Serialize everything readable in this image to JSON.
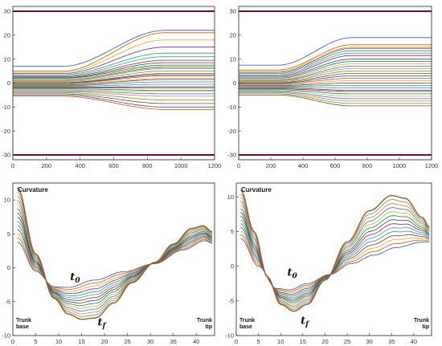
{
  "chart_data": [
    {
      "id": "top-left",
      "type": "line",
      "x_range": [
        0,
        1200
      ],
      "ylim": [
        -32,
        32
      ],
      "xticks": [
        0,
        200,
        400,
        600,
        800,
        1000,
        1200
      ],
      "yticks": [
        -30,
        -20,
        -10,
        0,
        10,
        20,
        30
      ],
      "boundaries": [
        30,
        -30
      ],
      "transition_x": [
        300,
        900
      ],
      "series_starts": [
        7,
        5,
        4.5,
        4,
        3.5,
        3,
        2.6,
        2.2,
        2,
        1.6,
        1.2,
        1,
        0.6,
        0.2,
        0,
        -0.2,
        -0.5,
        -0.8,
        -1.1,
        -1.4,
        -1.7,
        -2,
        -2.4,
        -2.8,
        -3.2,
        -3.6,
        -4,
        -4.5,
        -5,
        -5.5
      ],
      "series_ends": [
        22,
        21,
        18,
        15,
        12.5,
        11,
        9.5,
        8.5,
        7.5,
        7,
        6.5,
        6,
        5,
        4,
        3.5,
        3,
        2,
        1.5,
        0.5,
        -0.5,
        -1.5,
        -2,
        -3,
        -3.5,
        -4.5,
        -5.5,
        -7,
        -8.5,
        -10,
        -11
      ]
    },
    {
      "id": "top-right",
      "type": "line",
      "x_range": [
        0,
        1200
      ],
      "ylim": [
        -32,
        32
      ],
      "xticks": [
        0,
        200,
        400,
        600,
        800,
        1000,
        1200
      ],
      "yticks": [
        -30,
        -20,
        -10,
        0,
        10,
        20,
        30
      ],
      "boundaries": [
        30,
        -30
      ],
      "transition_x": [
        250,
        700
      ],
      "series_starts": [
        7.5,
        5.5,
        5,
        4.5,
        4,
        3.5,
        3,
        2.5,
        2,
        1.5,
        1.2,
        1,
        0.6,
        0.2,
        -0.1,
        -0.4,
        -0.7,
        -1,
        -1.3,
        -1.6,
        -2,
        -2.4,
        -2.8,
        -3.2,
        -3.6,
        -4,
        -4.5,
        -5
      ],
      "series_ends": [
        19,
        16,
        15,
        14.5,
        13.5,
        12.5,
        11.5,
        10,
        9,
        8,
        7,
        6,
        5,
        4,
        3,
        2,
        1,
        0,
        -1,
        -2,
        -3,
        -3.5,
        -4.5,
        -5.5,
        -6.5,
        -7.5,
        -8.5,
        -9.5
      ]
    },
    {
      "id": "bottom-left",
      "type": "line",
      "x_range": [
        0,
        44
      ],
      "ylim": [
        -10,
        12.5
      ],
      "xticks": [
        0,
        5,
        10,
        15,
        20,
        25,
        30,
        35,
        40
      ],
      "yticks": [
        -10,
        -5,
        0,
        5,
        10
      ],
      "title": "Curvature",
      "label_left": "Trunk\nbase",
      "label_right": "Trunk\ntip",
      "t0_label": "t",
      "t0_sub": "0",
      "tf_label": "t",
      "tf_sub": "f",
      "t0_pos": [
        12.5,
        -1.8
      ],
      "tf_pos": [
        18.5,
        -8.5
      ],
      "initial_profile": [
        [
          1,
          3.8
        ],
        [
          5,
          -0.5
        ],
        [
          9,
          -2.8
        ],
        [
          12,
          -2.9
        ],
        [
          18,
          -1.8
        ],
        [
          24,
          -0.6
        ],
        [
          31,
          0.6
        ],
        [
          37,
          2.6
        ],
        [
          42,
          4
        ],
        [
          43.5,
          3.6
        ]
      ],
      "final_profile": [
        [
          1,
          11.8
        ],
        [
          5,
          2
        ],
        [
          9,
          -4.5
        ],
        [
          12,
          -6.8
        ],
        [
          15,
          -7.6
        ],
        [
          18,
          -7.4
        ],
        [
          22,
          -5.2
        ],
        [
          26,
          -2.2
        ],
        [
          31,
          0.8
        ],
        [
          35,
          3.5
        ],
        [
          39,
          5.8
        ],
        [
          41.5,
          6.2
        ],
        [
          43.5,
          5.3
        ]
      ],
      "n_curves": 14
    },
    {
      "id": "bottom-right",
      "type": "line",
      "x_range": [
        0,
        44
      ],
      "ylim": [
        -10,
        12
      ],
      "xticks": [
        0,
        5,
        10,
        15,
        20,
        25,
        30,
        35,
        40
      ],
      "yticks": [
        -10,
        -5,
        0,
        5,
        10
      ],
      "title": "Curvature",
      "label_left": "Trunk\nbase",
      "label_right": "Trunk\ntip",
      "t0_label": "t",
      "t0_sub": "0",
      "tf_label": "t",
      "tf_sub": "f",
      "t0_pos": [
        11.5,
        -1.4
      ],
      "tf_pos": [
        14.5,
        -8.3
      ],
      "initial_profile": [
        [
          1,
          4
        ],
        [
          5,
          0
        ],
        [
          9,
          -3.2
        ],
        [
          12,
          -3.4
        ],
        [
          16,
          -2.5
        ],
        [
          21,
          -1.2
        ],
        [
          26,
          0.4
        ],
        [
          31,
          1.6
        ],
        [
          36,
          2.7
        ],
        [
          42,
          3.5
        ],
        [
          43.5,
          3.5
        ]
      ],
      "final_profile": [
        [
          1,
          11
        ],
        [
          4,
          5
        ],
        [
          7,
          -1.5
        ],
        [
          10,
          -5.5
        ],
        [
          13,
          -6.5
        ],
        [
          16,
          -5.5
        ],
        [
          20,
          -2
        ],
        [
          25,
          3.5
        ],
        [
          30,
          8
        ],
        [
          35,
          10.2
        ],
        [
          38,
          9.8
        ],
        [
          42,
          7
        ],
        [
          43.5,
          5.6
        ]
      ],
      "n_curves": 14
    }
  ],
  "colors": {
    "boundary_upper": "#7a1010",
    "boundary_lower": "#7a1010",
    "palette": [
      "#1f4fd0",
      "#d35400",
      "#e0b000",
      "#7b1fa2",
      "#2e9e2e",
      "#18a0e0",
      "#b0182e",
      "#444444",
      "#0a7d7d",
      "#c0c000",
      "#4060ff",
      "#ff7030",
      "#30b050",
      "#a04000"
    ]
  }
}
